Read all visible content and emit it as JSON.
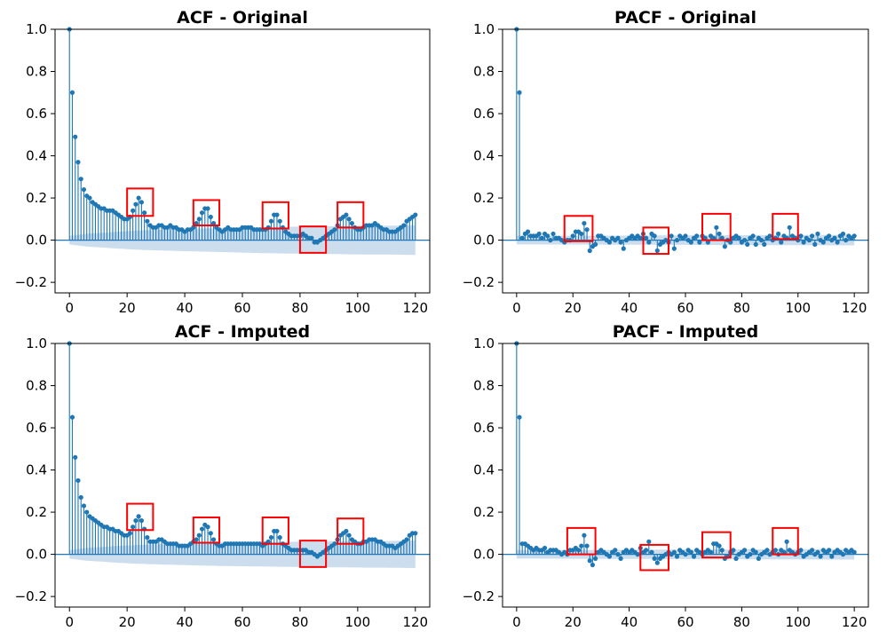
{
  "chart_data": [
    {
      "type": "stem",
      "title": "ACF - Original",
      "xlabel": "",
      "ylabel": "",
      "xlim": [
        -5,
        125
      ],
      "ylim": [
        -0.25,
        1.0
      ],
      "xticks": [
        "0",
        "20",
        "40",
        "60",
        "80",
        "100",
        "120"
      ],
      "yticks": [
        "1.0",
        "0.8",
        "0.6",
        "0.4",
        "0.2",
        "0.0",
        "−0.2"
      ],
      "colors": {
        "stem": "#1f77b4",
        "confidence_band": "#c6d9ec",
        "highlight": "#ff0000"
      },
      "confidence_band_halfwidth": [
        0.02,
        0.03,
        0.035,
        0.04,
        0.045,
        0.048,
        0.05,
        0.052,
        0.054,
        0.056,
        0.058,
        0.06,
        0.062,
        0.063,
        0.064,
        0.065,
        0.066,
        0.067,
        0.068,
        0.068,
        0.069,
        0.07
      ],
      "values": [
        1.0,
        0.7,
        0.49,
        0.37,
        0.29,
        0.24,
        0.21,
        0.2,
        0.18,
        0.17,
        0.16,
        0.15,
        0.15,
        0.14,
        0.14,
        0.14,
        0.13,
        0.12,
        0.11,
        0.1,
        0.1,
        0.11,
        0.14,
        0.17,
        0.2,
        0.18,
        0.13,
        0.09,
        0.07,
        0.06,
        0.06,
        0.07,
        0.07,
        0.06,
        0.06,
        0.07,
        0.06,
        0.06,
        0.05,
        0.05,
        0.04,
        0.05,
        0.05,
        0.06,
        0.08,
        0.1,
        0.13,
        0.15,
        0.15,
        0.11,
        0.08,
        0.06,
        0.05,
        0.04,
        0.05,
        0.06,
        0.05,
        0.05,
        0.05,
        0.05,
        0.06,
        0.06,
        0.06,
        0.06,
        0.05,
        0.05,
        0.05,
        0.05,
        0.05,
        0.06,
        0.09,
        0.12,
        0.12,
        0.09,
        0.06,
        0.04,
        0.03,
        0.02,
        0.02,
        0.02,
        0.02,
        0.03,
        0.02,
        0.01,
        0.01,
        -0.01,
        -0.01,
        0.0,
        0.01,
        0.02,
        0.03,
        0.04,
        0.05,
        0.07,
        0.1,
        0.11,
        0.12,
        0.1,
        0.08,
        0.06,
        0.05,
        0.05,
        0.06,
        0.07,
        0.07,
        0.07,
        0.08,
        0.07,
        0.06,
        0.05,
        0.05,
        0.04,
        0.04,
        0.04,
        0.05,
        0.06,
        0.07,
        0.09,
        0.1,
        0.11,
        0.12
      ],
      "highlight_boxes": [
        {
          "x": [
            20,
            29
          ],
          "y": [
            0.115,
            0.245
          ]
        },
        {
          "x": [
            43,
            52
          ],
          "y": [
            0.07,
            0.19
          ]
        },
        {
          "x": [
            67,
            76
          ],
          "y": [
            0.055,
            0.18
          ]
        },
        {
          "x": [
            80,
            89
          ],
          "y": [
            -0.06,
            0.065
          ]
        },
        {
          "x": [
            93,
            102
          ],
          "y": [
            0.06,
            0.18
          ]
        }
      ]
    },
    {
      "type": "stem",
      "title": "PACF - Original",
      "xlabel": "",
      "ylabel": "",
      "xlim": [
        -5,
        125
      ],
      "ylim": [
        -0.25,
        1.0
      ],
      "xticks": [
        "0",
        "20",
        "40",
        "60",
        "80",
        "100",
        "120"
      ],
      "yticks": [
        "1.0",
        "0.8",
        "0.6",
        "0.4",
        "0.2",
        "0.0",
        "−0.2"
      ],
      "colors": {
        "stem": "#1f77b4",
        "confidence_band": "#c6d9ec",
        "highlight": "#ff0000"
      },
      "confidence_band_halfwidth": [
        0.02,
        0.025
      ],
      "values": [
        1.0,
        0.7,
        0.01,
        0.03,
        0.04,
        0.02,
        0.02,
        0.02,
        0.03,
        0.01,
        0.03,
        0.02,
        0.0,
        0.03,
        0.01,
        0.01,
        0.0,
        -0.01,
        0.0,
        0.0,
        0.02,
        0.04,
        0.04,
        0.03,
        0.08,
        0.05,
        -0.05,
        -0.03,
        -0.02,
        0.02,
        0.02,
        0.01,
        0.0,
        -0.01,
        0.01,
        0.0,
        0.01,
        -0.01,
        -0.04,
        0.0,
        0.01,
        0.02,
        0.01,
        0.02,
        0.01,
        0.03,
        0.01,
        -0.01,
        0.03,
        0.02,
        -0.05,
        -0.02,
        -0.01,
        0.0,
        -0.01,
        0.02,
        -0.04,
        0.0,
        0.02,
        0.01,
        0.02,
        0.0,
        -0.01,
        0.01,
        0.02,
        -0.01,
        0.02,
        0.01,
        -0.01,
        0.02,
        0.01,
        0.06,
        0.03,
        0.01,
        -0.03,
        0.0,
        -0.01,
        0.01,
        0.02,
        0.01,
        -0.01,
        0.0,
        -0.02,
        0.01,
        0.02,
        -0.02,
        0.01,
        0.0,
        -0.02,
        0.01,
        0.02,
        0.0,
        0.01,
        0.03,
        -0.01,
        0.02,
        0.01,
        0.06,
        0.02,
        0.01,
        0.0,
        0.02,
        -0.01,
        0.01,
        0.0,
        0.02,
        -0.02,
        0.03,
        0.0,
        -0.01,
        0.01,
        0.02,
        0.0,
        0.01,
        -0.01,
        0.02,
        0.03,
        0.0,
        0.02,
        0.01,
        0.02
      ],
      "highlight_boxes": [
        {
          "x": [
            17,
            27
          ],
          "y": [
            -0.005,
            0.115
          ]
        },
        {
          "x": [
            45,
            54
          ],
          "y": [
            -0.065,
            0.06
          ]
        },
        {
          "x": [
            66,
            76
          ],
          "y": [
            0.0,
            0.125
          ]
        },
        {
          "x": [
            91,
            100
          ],
          "y": [
            0.005,
            0.125
          ]
        }
      ]
    },
    {
      "type": "stem",
      "title": "ACF - Imputed",
      "xlabel": "",
      "ylabel": "",
      "xlim": [
        -5,
        125
      ],
      "ylim": [
        -0.25,
        1.0
      ],
      "xticks": [
        "0",
        "20",
        "40",
        "60",
        "80",
        "100",
        "120"
      ],
      "yticks": [
        "1.0",
        "0.8",
        "0.6",
        "0.4",
        "0.2",
        "0.0",
        "−0.2"
      ],
      "colors": {
        "stem": "#1f77b4",
        "confidence_band": "#c6d9ec",
        "highlight": "#ff0000"
      },
      "confidence_band_halfwidth": [
        0.02,
        0.03,
        0.035,
        0.04,
        0.044,
        0.047,
        0.049,
        0.051,
        0.053,
        0.055,
        0.056,
        0.057,
        0.058,
        0.059,
        0.06,
        0.061,
        0.062,
        0.062,
        0.063,
        0.063,
        0.064,
        0.065
      ],
      "values": [
        1.0,
        0.65,
        0.46,
        0.35,
        0.27,
        0.23,
        0.2,
        0.18,
        0.17,
        0.16,
        0.15,
        0.14,
        0.13,
        0.13,
        0.12,
        0.12,
        0.11,
        0.11,
        0.1,
        0.09,
        0.09,
        0.1,
        0.13,
        0.16,
        0.18,
        0.16,
        0.12,
        0.08,
        0.06,
        0.06,
        0.06,
        0.07,
        0.07,
        0.06,
        0.05,
        0.05,
        0.05,
        0.05,
        0.04,
        0.04,
        0.04,
        0.04,
        0.05,
        0.06,
        0.07,
        0.09,
        0.12,
        0.14,
        0.13,
        0.1,
        0.07,
        0.05,
        0.04,
        0.04,
        0.05,
        0.05,
        0.05,
        0.05,
        0.05,
        0.05,
        0.05,
        0.05,
        0.05,
        0.05,
        0.05,
        0.05,
        0.05,
        0.04,
        0.05,
        0.06,
        0.08,
        0.11,
        0.11,
        0.08,
        0.05,
        0.04,
        0.03,
        0.02,
        0.02,
        0.02,
        0.02,
        0.02,
        0.02,
        0.01,
        0.01,
        0.0,
        -0.01,
        0.0,
        0.01,
        0.02,
        0.03,
        0.04,
        0.05,
        0.07,
        0.09,
        0.1,
        0.11,
        0.09,
        0.07,
        0.06,
        0.05,
        0.05,
        0.06,
        0.06,
        0.07,
        0.07,
        0.07,
        0.06,
        0.06,
        0.05,
        0.04,
        0.04,
        0.04,
        0.03,
        0.04,
        0.05,
        0.06,
        0.07,
        0.09,
        0.1,
        0.1
      ],
      "highlight_boxes": [
        {
          "x": [
            20,
            29
          ],
          "y": [
            0.115,
            0.24
          ]
        },
        {
          "x": [
            43,
            52
          ],
          "y": [
            0.055,
            0.175
          ]
        },
        {
          "x": [
            67,
            76
          ],
          "y": [
            0.05,
            0.175
          ]
        },
        {
          "x": [
            80,
            89
          ],
          "y": [
            -0.06,
            0.065
          ]
        },
        {
          "x": [
            93,
            102
          ],
          "y": [
            0.05,
            0.17
          ]
        }
      ]
    },
    {
      "type": "stem",
      "title": "PACF - Imputed",
      "xlabel": "",
      "ylabel": "",
      "xlim": [
        -5,
        125
      ],
      "ylim": [
        -0.25,
        1.0
      ],
      "xticks": [
        "0",
        "20",
        "40",
        "60",
        "80",
        "100",
        "120"
      ],
      "yticks": [
        "1.0",
        "0.8",
        "0.6",
        "0.4",
        "0.2",
        "0.0",
        "−0.2"
      ],
      "colors": {
        "stem": "#1f77b4",
        "confidence_band": "#c6d9ec",
        "highlight": "#ff0000"
      },
      "confidence_band_halfwidth": [
        0.02,
        0.025
      ],
      "values": [
        1.0,
        0.65,
        0.05,
        0.05,
        0.04,
        0.03,
        0.02,
        0.03,
        0.02,
        0.02,
        0.03,
        0.01,
        0.02,
        0.02,
        0.02,
        0.01,
        0.0,
        0.01,
        0.0,
        0.02,
        0.02,
        0.03,
        0.02,
        0.04,
        0.09,
        0.04,
        -0.03,
        -0.05,
        -0.02,
        0.01,
        0.02,
        0.01,
        0.0,
        -0.01,
        0.01,
        0.02,
        0.0,
        -0.02,
        0.01,
        0.02,
        0.01,
        0.02,
        0.01,
        0.0,
        0.03,
        0.01,
        0.02,
        0.06,
        0.01,
        -0.02,
        -0.04,
        -0.02,
        -0.01,
        0.0,
        0.01,
        0.0,
        0.01,
        -0.01,
        0.02,
        0.01,
        0.0,
        0.02,
        0.01,
        -0.01,
        0.02,
        0.01,
        0.0,
        0.01,
        0.02,
        0.01,
        0.05,
        0.05,
        0.04,
        0.02,
        -0.02,
        -0.01,
        0.01,
        0.02,
        -0.02,
        0.0,
        0.01,
        0.02,
        -0.01,
        0.0,
        0.02,
        0.01,
        -0.02,
        0.0,
        0.01,
        0.02,
        0.0,
        0.01,
        0.02,
        0.0,
        0.02,
        0.01,
        0.06,
        0.02,
        0.01,
        0.0,
        0.01,
        0.02,
        -0.01,
        0.0,
        0.01,
        0.02,
        0.0,
        0.01,
        -0.01,
        0.02,
        0.01,
        0.02,
        -0.01,
        0.01,
        0.02,
        0.01,
        0.0,
        0.02,
        0.01,
        0.02,
        0.01
      ],
      "highlight_boxes": [
        {
          "x": [
            18,
            28
          ],
          "y": [
            0.0,
            0.125
          ]
        },
        {
          "x": [
            44,
            54
          ],
          "y": [
            -0.075,
            0.045
          ]
        },
        {
          "x": [
            66,
            76
          ],
          "y": [
            -0.015,
            0.105
          ]
        },
        {
          "x": [
            91,
            100
          ],
          "y": [
            0.0,
            0.125
          ]
        }
      ]
    }
  ]
}
